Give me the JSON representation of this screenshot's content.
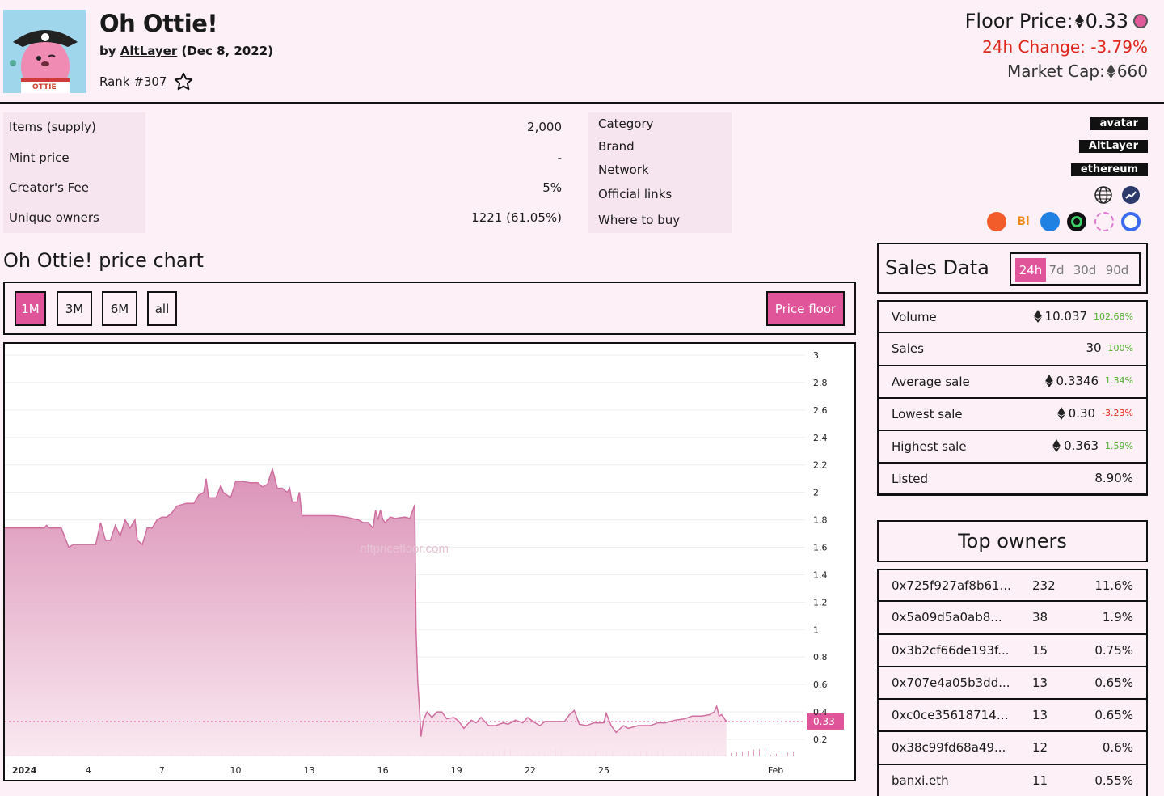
{
  "collection": {
    "name": "Oh Ottie!",
    "by_prefix": "by",
    "creator": "AltLayer",
    "date": "(Dec 8, 2022)",
    "rank": "Rank #307"
  },
  "price": {
    "floor_label": "Floor Price:",
    "floor_value": "0.33",
    "change_label": "24h Change:",
    "change_value": "-3.79%",
    "cap_label": "Market Cap:",
    "cap_value": "660"
  },
  "stats": [
    {
      "label": "Items (supply)",
      "value": "2,000"
    },
    {
      "label": "Mint price",
      "value": "-"
    },
    {
      "label": "Creator's Fee",
      "value": "5%"
    },
    {
      "label": "Unique owners",
      "value": "1221 (61.05%)"
    }
  ],
  "details": {
    "labels": [
      "Category",
      "Brand",
      "Network",
      "Official links",
      "Where to buy"
    ],
    "category": "avatar",
    "brand": "AltLayer",
    "network": "ethereum"
  },
  "icons": {
    "links": [
      "globe-icon",
      "chart-link-icon"
    ],
    "markets": [
      "marketplace-1-icon",
      "marketplace-2-icon",
      "marketplace-3-icon",
      "marketplace-4-icon",
      "marketplace-5-icon",
      "marketplace-6-icon"
    ]
  },
  "chart_section": {
    "title": "Oh Ottie! price chart",
    "ranges": [
      "1M",
      "3M",
      "6M",
      "all"
    ],
    "active_range": "1M",
    "price_floor_button": "Price floor",
    "watermark": "nftpricefloor.com",
    "current_label": "0.33"
  },
  "colors": {
    "accent": "#e0559a",
    "area_fill": "#d98cb3",
    "positive": "#4caf2a",
    "negative": "#e0251b"
  },
  "chart_data": {
    "type": "area",
    "x_ticks": [
      {
        "label": "2024",
        "day": 1
      },
      {
        "label": "4",
        "day": 4
      },
      {
        "label": "7",
        "day": 7
      },
      {
        "label": "10",
        "day": 10
      },
      {
        "label": "13",
        "day": 13
      },
      {
        "label": "16",
        "day": 16
      },
      {
        "label": "19",
        "day": 19
      },
      {
        "label": "22",
        "day": 22
      },
      {
        "label": "25",
        "day": 25
      },
      {
        "label": "Feb",
        "day": 32
      }
    ],
    "y_ticks": [
      "3",
      "2.8",
      "2.6",
      "2.4",
      "2.2",
      "2",
      "1.8",
      "1.6",
      "1.4",
      "1.2",
      "1",
      "0.8",
      "0.6",
      "0.4",
      "0.2"
    ],
    "ylim": [
      0.15,
      3.0
    ],
    "xlim": [
      0.6,
      33.2
    ],
    "current_value": 0.33,
    "series": [
      {
        "values": [
          [
            0.6,
            1.74
          ],
          [
            2.2,
            1.74
          ],
          [
            2.3,
            1.76
          ],
          [
            2.4,
            1.74
          ],
          [
            2.9,
            1.74
          ],
          [
            3.2,
            1.6
          ],
          [
            3.4,
            1.62
          ],
          [
            4.3,
            1.62
          ],
          [
            4.5,
            1.78
          ],
          [
            4.7,
            1.65
          ],
          [
            4.9,
            1.65
          ],
          [
            5.1,
            1.76
          ],
          [
            5.3,
            1.68
          ],
          [
            5.5,
            1.8
          ],
          [
            5.7,
            1.74
          ],
          [
            5.9,
            1.8
          ],
          [
            6.0,
            1.65
          ],
          [
            6.2,
            1.62
          ],
          [
            6.4,
            1.74
          ],
          [
            6.6,
            1.74
          ],
          [
            6.8,
            1.8
          ],
          [
            7.0,
            1.82
          ],
          [
            7.2,
            1.82
          ],
          [
            7.4,
            1.85
          ],
          [
            7.6,
            1.9
          ],
          [
            8.0,
            1.92
          ],
          [
            8.3,
            1.92
          ],
          [
            8.5,
            1.98
          ],
          [
            8.7,
            2.0
          ],
          [
            8.8,
            2.1
          ],
          [
            8.9,
            1.96
          ],
          [
            9.2,
            1.96
          ],
          [
            9.4,
            2.05
          ],
          [
            9.5,
            2.0
          ],
          [
            9.8,
            1.96
          ],
          [
            10.0,
            2.08
          ],
          [
            10.3,
            2.08
          ],
          [
            10.6,
            2.07
          ],
          [
            10.9,
            2.07
          ],
          [
            11.1,
            2.04
          ],
          [
            11.3,
            2.06
          ],
          [
            11.5,
            2.17
          ],
          [
            11.7,
            2.03
          ],
          [
            11.9,
            2.03
          ],
          [
            12.1,
            2.0
          ],
          [
            12.2,
            2.03
          ],
          [
            12.3,
            1.93
          ],
          [
            12.5,
            1.93
          ],
          [
            12.6,
            2.0
          ],
          [
            12.7,
            1.83
          ],
          [
            13.0,
            1.83
          ],
          [
            14.0,
            1.83
          ],
          [
            14.5,
            1.82
          ],
          [
            15.0,
            1.8
          ],
          [
            15.2,
            1.78
          ],
          [
            15.4,
            1.78
          ],
          [
            15.6,
            1.74
          ],
          [
            15.7,
            1.87
          ],
          [
            15.8,
            1.8
          ],
          [
            15.9,
            1.87
          ],
          [
            16.0,
            1.8
          ],
          [
            16.1,
            1.78
          ],
          [
            16.3,
            1.82
          ],
          [
            16.5,
            1.81
          ],
          [
            16.9,
            1.82
          ],
          [
            17.1,
            1.81
          ],
          [
            17.3,
            1.91
          ],
          [
            17.35,
            1.0
          ],
          [
            17.42,
            0.62
          ],
          [
            17.5,
            0.4
          ],
          [
            17.55,
            0.22
          ],
          [
            17.65,
            0.34
          ],
          [
            17.8,
            0.4
          ],
          [
            18.0,
            0.36
          ],
          [
            18.2,
            0.4
          ],
          [
            18.4,
            0.4
          ],
          [
            18.6,
            0.35
          ],
          [
            18.9,
            0.36
          ],
          [
            19.1,
            0.33
          ],
          [
            19.3,
            0.28
          ],
          [
            19.6,
            0.34
          ],
          [
            19.8,
            0.32
          ],
          [
            20.0,
            0.36
          ],
          [
            20.3,
            0.3
          ],
          [
            20.6,
            0.3
          ],
          [
            20.9,
            0.32
          ],
          [
            21.1,
            0.31
          ],
          [
            21.4,
            0.34
          ],
          [
            21.7,
            0.32
          ],
          [
            21.9,
            0.36
          ],
          [
            22.2,
            0.32
          ],
          [
            22.4,
            0.3
          ],
          [
            22.6,
            0.33
          ],
          [
            23.0,
            0.33
          ],
          [
            23.4,
            0.33
          ],
          [
            23.6,
            0.38
          ],
          [
            23.8,
            0.41
          ],
          [
            24.0,
            0.31
          ],
          [
            24.3,
            0.3
          ],
          [
            24.6,
            0.32
          ],
          [
            25.0,
            0.32
          ],
          [
            25.1,
            0.39
          ],
          [
            25.3,
            0.3
          ],
          [
            25.5,
            0.25
          ],
          [
            25.8,
            0.3
          ],
          [
            26.0,
            0.28
          ],
          [
            26.4,
            0.3
          ],
          [
            26.9,
            0.3
          ],
          [
            27.2,
            0.32
          ],
          [
            27.5,
            0.32
          ],
          [
            27.9,
            0.34
          ],
          [
            28.3,
            0.35
          ],
          [
            28.6,
            0.37
          ],
          [
            29.0,
            0.37
          ],
          [
            29.3,
            0.38
          ],
          [
            29.5,
            0.4
          ],
          [
            29.6,
            0.44
          ],
          [
            29.7,
            0.37
          ],
          [
            29.8,
            0.38
          ],
          [
            30.0,
            0.33
          ]
        ]
      }
    ]
  },
  "sales": {
    "title": "Sales Data",
    "periods": [
      "24h",
      "7d",
      "30d",
      "90d"
    ],
    "active_period": "24h",
    "rows": [
      {
        "label": "Volume",
        "value": "10.037",
        "pct": "102.68%",
        "eth": true,
        "neg": false
      },
      {
        "label": "Sales",
        "value": "30",
        "pct": "100%",
        "eth": false,
        "neg": false
      },
      {
        "label": "Average sale",
        "value": "0.3346",
        "pct": "1.34%",
        "eth": true,
        "neg": false
      },
      {
        "label": "Lowest sale",
        "value": "0.30",
        "pct": "-3.23%",
        "eth": true,
        "neg": true
      },
      {
        "label": "Highest sale",
        "value": "0.363",
        "pct": "1.59%",
        "eth": true,
        "neg": false
      },
      {
        "label": "Listed",
        "value": "8.90%",
        "pct": "",
        "eth": false,
        "neg": false
      }
    ]
  },
  "owners": {
    "title": "Top owners",
    "rows": [
      {
        "address": "0x725f927af8b61...",
        "count": "232",
        "share": "11.6%"
      },
      {
        "address": "0x5a09d5a0ab8...",
        "count": "38",
        "share": "1.9%"
      },
      {
        "address": "0x3b2cf66de193f...",
        "count": "15",
        "share": "0.75%"
      },
      {
        "address": "0x707e4a05b3dd...",
        "count": "13",
        "share": "0.65%"
      },
      {
        "address": "0xc0ce356187144...",
        "count": "13",
        "share": "0.65%"
      },
      {
        "address": "0x38c99fd68a49...",
        "count": "12",
        "share": "0.6%"
      },
      {
        "address": "banxi.eth",
        "count": "11",
        "share": "0.55%"
      }
    ]
  }
}
